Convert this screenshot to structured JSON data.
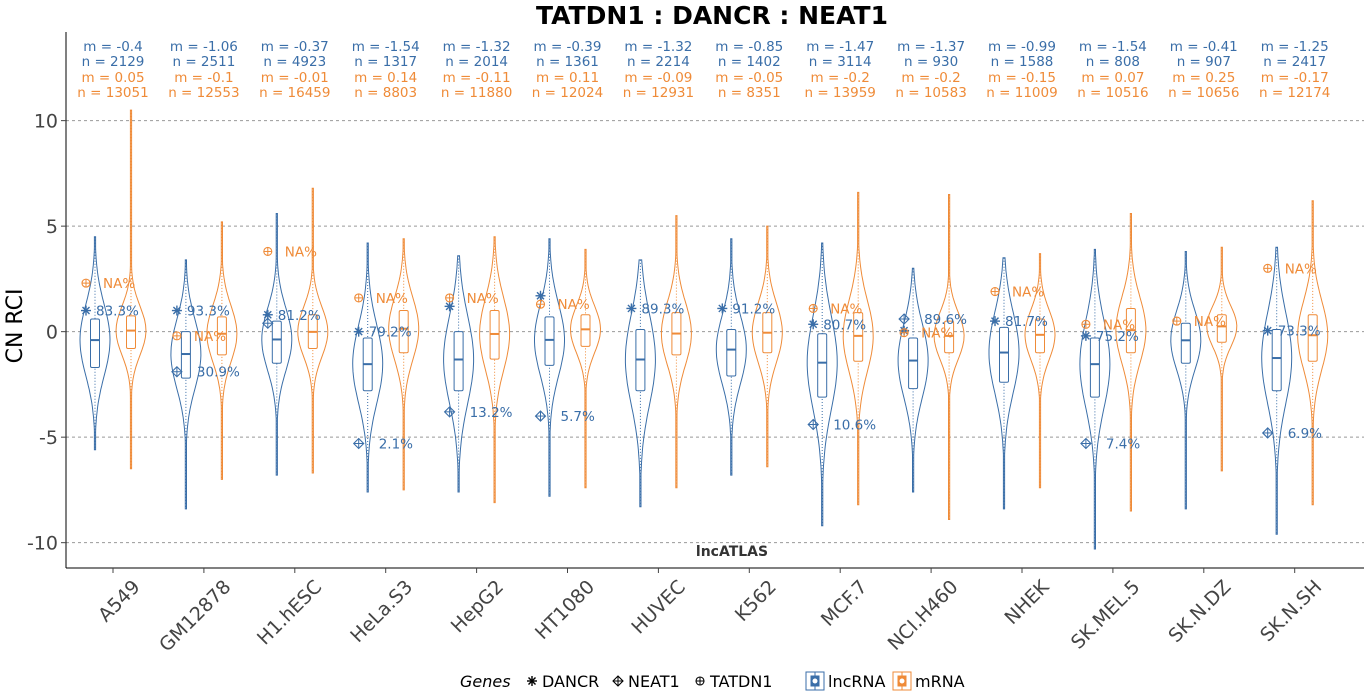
{
  "colors": {
    "lncRNA": "#3A6EA8",
    "mRNA": "#EF8B38",
    "grid": "#999999"
  },
  "chart_data": {
    "type": "violin",
    "title": "TATDN1 : DANCR : NEAT1",
    "ylabel": "CN RCI",
    "caption": "lncATLAS",
    "ylim": [
      -11.2,
      14.2
    ],
    "yticks": [
      10,
      5,
      0,
      -5,
      -10
    ],
    "ytick_labels": [
      "10",
      "5",
      "0",
      "-5",
      "-10"
    ],
    "grid": true,
    "legend": {
      "position": "bottom",
      "genes_title": "Genes",
      "genes": [
        {
          "name": "DANCR",
          "marker": "asterisk"
        },
        {
          "name": "NEAT1",
          "marker": "diamond-plus"
        },
        {
          "name": "TATDN1",
          "marker": "circle-plus"
        }
      ],
      "classes": [
        {
          "name": "lncRNA",
          "color": "#3A6EA8"
        },
        {
          "name": "mRNA",
          "color": "#EF8B38"
        }
      ]
    },
    "cell_lines": [
      {
        "name": "A549",
        "lnc": {
          "m_label": "m = -0.4",
          "n_label": "n = 2129",
          "median": -0.4,
          "q1": -1.7,
          "q3": 0.6,
          "min": -5.6,
          "max": 4.5
        },
        "mrna": {
          "m_label": "m = 0.05",
          "n_label": "n = 13051",
          "median": 0.05,
          "q1": -0.8,
          "q3": 0.75,
          "min": -6.5,
          "max": 10.5
        },
        "DANCR": 1.0,
        "NEAT1": null,
        "TATDN1": 2.3,
        "DANCR_pct": "83.3%",
        "NEAT1_pct": null,
        "TATDN1_pct": "NA%"
      },
      {
        "name": "GM12878",
        "lnc": {
          "m_label": "m = -1.06",
          "n_label": "n = 2511",
          "median": -1.06,
          "q1": -2.2,
          "q3": 0.0,
          "min": -8.4,
          "max": 3.4
        },
        "mrna": {
          "m_label": "m = -0.1",
          "n_label": "n = 12553",
          "median": -0.1,
          "q1": -1.1,
          "q3": 0.7,
          "min": -7.0,
          "max": 5.2
        },
        "DANCR": 1.0,
        "NEAT1": -1.9,
        "TATDN1": -0.2,
        "DANCR_pct": "93.3%",
        "NEAT1_pct": "30.9%",
        "TATDN1_pct": "NA%"
      },
      {
        "name": "H1.hESC",
        "lnc": {
          "m_label": "m = -0.37",
          "n_label": "n = 4923",
          "median": -0.37,
          "q1": -1.5,
          "q3": 0.5,
          "min": -6.8,
          "max": 5.6
        },
        "mrna": {
          "m_label": "m = -0.01",
          "n_label": "n = 16459",
          "median": -0.01,
          "q1": -0.8,
          "q3": 0.8,
          "min": -6.7,
          "max": 6.8
        },
        "DANCR": 0.8,
        "NEAT1": 0.4,
        "TATDN1": 3.8,
        "DANCR_pct": "81.2%",
        "NEAT1_pct": null,
        "TATDN1_pct": "NA%"
      },
      {
        "name": "HeLa.S3",
        "lnc": {
          "m_label": "m = -1.54",
          "n_label": "n = 1317",
          "median": -1.54,
          "q1": -2.8,
          "q3": -0.3,
          "min": -7.6,
          "max": 4.2
        },
        "mrna": {
          "m_label": "m = 0.14",
          "n_label": "n = 8803",
          "median": 0.14,
          "q1": -1.0,
          "q3": 1.0,
          "min": -7.5,
          "max": 4.4
        },
        "DANCR": 0.0,
        "NEAT1": -5.3,
        "TATDN1": 1.6,
        "DANCR_pct": "79.2%",
        "NEAT1_pct": "2.1%",
        "TATDN1_pct": "NA%"
      },
      {
        "name": "HepG2",
        "lnc": {
          "m_label": "m = -1.32",
          "n_label": "n = 2014",
          "median": -1.32,
          "q1": -2.8,
          "q3": 0.0,
          "min": -7.6,
          "max": 3.6
        },
        "mrna": {
          "m_label": "m = -0.11",
          "n_label": "n = 11880",
          "median": -0.11,
          "q1": -1.3,
          "q3": 1.0,
          "min": -8.1,
          "max": 4.5
        },
        "DANCR": 1.2,
        "NEAT1": -3.8,
        "TATDN1": 1.6,
        "DANCR_pct": null,
        "NEAT1_pct": "13.2%",
        "TATDN1_pct": "NA%"
      },
      {
        "name": "HT1080",
        "lnc": {
          "m_label": "m = -0.39",
          "n_label": "n = 1361",
          "median": -0.39,
          "q1": -1.6,
          "q3": 0.7,
          "min": -7.8,
          "max": 4.4
        },
        "mrna": {
          "m_label": "m = 0.11",
          "n_label": "n = 12024",
          "median": 0.11,
          "q1": -0.7,
          "q3": 0.8,
          "min": -7.4,
          "max": 3.9
        },
        "DANCR": 1.7,
        "NEAT1": -4.0,
        "TATDN1": 1.3,
        "DANCR_pct": null,
        "NEAT1_pct": "5.7%",
        "TATDN1_pct": "NA%"
      },
      {
        "name": "HUVEC",
        "lnc": {
          "m_label": "m = -1.32",
          "n_label": "n = 2214",
          "median": -1.32,
          "q1": -2.8,
          "q3": 0.1,
          "min": -8.3,
          "max": 3.4
        },
        "mrna": {
          "m_label": "m = -0.09",
          "n_label": "n = 12931",
          "median": -0.09,
          "q1": -1.1,
          "q3": 0.9,
          "min": -7.4,
          "max": 5.5
        },
        "DANCR": 1.1,
        "NEAT1": null,
        "TATDN1": null,
        "DANCR_pct": "89.3%",
        "NEAT1_pct": null,
        "TATDN1_pct": null
      },
      {
        "name": "K562",
        "lnc": {
          "m_label": "m = -0.85",
          "n_label": "n = 1402",
          "median": -0.85,
          "q1": -2.1,
          "q3": 0.1,
          "min": -6.8,
          "max": 4.4
        },
        "mrna": {
          "m_label": "m = -0.05",
          "n_label": "n = 8351",
          "median": -0.05,
          "q1": -1.0,
          "q3": 0.9,
          "min": -6.4,
          "max": 5.0
        },
        "DANCR": 1.1,
        "NEAT1": null,
        "TATDN1": null,
        "DANCR_pct": "91.2%",
        "NEAT1_pct": null,
        "TATDN1_pct": null
      },
      {
        "name": "MCF.7",
        "lnc": {
          "m_label": "m = -1.47",
          "n_label": "n = 3114",
          "median": -1.47,
          "q1": -3.1,
          "q3": -0.1,
          "min": -9.2,
          "max": 4.2
        },
        "mrna": {
          "m_label": "m = -0.2",
          "n_label": "n = 13959",
          "median": -0.2,
          "q1": -1.4,
          "q3": 0.9,
          "min": -8.2,
          "max": 6.6
        },
        "DANCR": 0.35,
        "NEAT1": -4.4,
        "TATDN1": 1.1,
        "DANCR_pct": "80.7%",
        "NEAT1_pct": "10.6%",
        "TATDN1_pct": "NA%"
      },
      {
        "name": "NCI.H460",
        "lnc": {
          "m_label": "m = -1.37",
          "n_label": "n = 930",
          "median": -1.37,
          "q1": -2.7,
          "q3": -0.3,
          "min": -7.6,
          "max": 3.0
        },
        "mrna": {
          "m_label": "m = -0.2",
          "n_label": "n = 10583",
          "median": -0.2,
          "q1": -1.0,
          "q3": 0.5,
          "min": -8.9,
          "max": 6.5
        },
        "DANCR": 0.05,
        "NEAT1": 0.6,
        "TATDN1": -0.05,
        "DANCR_pct": null,
        "NEAT1_pct": "89.6%",
        "TATDN1_pct": "NA%"
      },
      {
        "name": "NHEK",
        "lnc": {
          "m_label": "m = -0.99",
          "n_label": "n = 1588",
          "median": -0.99,
          "q1": -2.4,
          "q3": 0.2,
          "min": -8.4,
          "max": 3.5
        },
        "mrna": {
          "m_label": "m = -0.15",
          "n_label": "n = 11009",
          "median": -0.15,
          "q1": -1.0,
          "q3": 0.6,
          "min": -7.4,
          "max": 3.7
        },
        "DANCR": 0.5,
        "NEAT1": null,
        "TATDN1": 1.9,
        "DANCR_pct": "81.7%",
        "NEAT1_pct": null,
        "TATDN1_pct": "NA%"
      },
      {
        "name": "SK.MEL.5",
        "lnc": {
          "m_label": "m = -1.54",
          "n_label": "n = 808",
          "median": -1.54,
          "q1": -3.1,
          "q3": -0.3,
          "min": -10.3,
          "max": 3.9
        },
        "mrna": {
          "m_label": "m = 0.07",
          "n_label": "n = 10516",
          "median": 0.07,
          "q1": -1.0,
          "q3": 1.1,
          "min": -8.5,
          "max": 5.6
        },
        "DANCR": -0.2,
        "NEAT1": -5.3,
        "TATDN1": 0.35,
        "DANCR_pct": "75.2%",
        "NEAT1_pct": "7.4%",
        "TATDN1_pct": "NA%"
      },
      {
        "name": "SK.N.DZ",
        "lnc": {
          "m_label": "m = -0.41",
          "n_label": "n = 907",
          "median": -0.41,
          "q1": -1.5,
          "q3": 0.4,
          "min": -8.4,
          "max": 3.8
        },
        "mrna": {
          "m_label": "m = 0.25",
          "n_label": "n = 10656",
          "median": 0.25,
          "q1": -0.5,
          "q3": 0.8,
          "min": -6.6,
          "max": 4.0
        },
        "DANCR": null,
        "NEAT1": null,
        "TATDN1": 0.5,
        "DANCR_pct": null,
        "NEAT1_pct": null,
        "TATDN1_pct": "NA%"
      },
      {
        "name": "SK.N.SH",
        "lnc": {
          "m_label": "m = -1.25",
          "n_label": "n = 2417",
          "median": -1.25,
          "q1": -2.8,
          "q3": 0.1,
          "min": -9.6,
          "max": 4.0
        },
        "mrna": {
          "m_label": "m = -0.17",
          "n_label": "n = 12174",
          "median": -0.17,
          "q1": -1.4,
          "q3": 0.8,
          "min": -8.2,
          "max": 6.2
        },
        "DANCR": 0.05,
        "NEAT1": -4.8,
        "TATDN1": 3.0,
        "DANCR_pct": "73.3%",
        "NEAT1_pct": "6.9%",
        "TATDN1_pct": "NA%"
      }
    ]
  }
}
